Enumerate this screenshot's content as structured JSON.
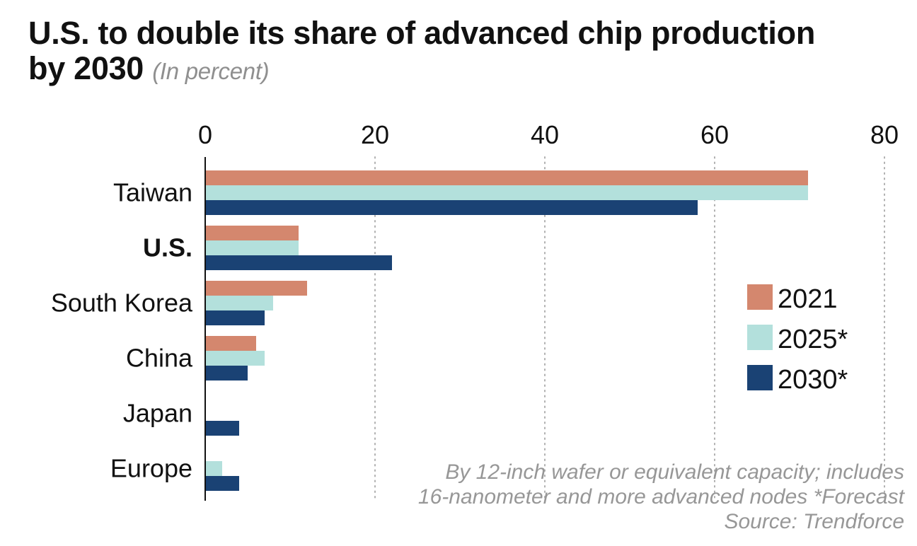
{
  "title": {
    "main_line1": "U.S. to double its share of advanced chip production",
    "main_line2": "by 2030",
    "unit": "(In percent)"
  },
  "chart_data": {
    "type": "bar",
    "orientation": "horizontal",
    "categories": [
      "Taiwan",
      "U.S.",
      "South Korea",
      "China",
      "Japan",
      "Europe"
    ],
    "highlight_category": "U.S.",
    "series": [
      {
        "name": "2021",
        "color": "#d4876e",
        "values": [
          71,
          11,
          12,
          6,
          0,
          0
        ]
      },
      {
        "name": "2025*",
        "color": "#b3e0dc",
        "values": [
          71,
          11,
          8,
          7,
          0,
          2
        ]
      },
      {
        "name": "2030*",
        "color": "#1a4274",
        "values": [
          58,
          22,
          7,
          5,
          4,
          4
        ]
      }
    ],
    "x_ticks": [
      "0",
      "20",
      "40",
      "60",
      "80"
    ],
    "xlim": [
      0,
      80
    ],
    "x_axis_position": "top",
    "grid": "vertical dotted",
    "legend_position": "right"
  },
  "notes": {
    "line1": "By 12-inch wafer or equivalent capacity;  includes",
    "line2": "16-nanometer and more advanced nodes *Forecast",
    "source": "Source: Trendforce"
  }
}
